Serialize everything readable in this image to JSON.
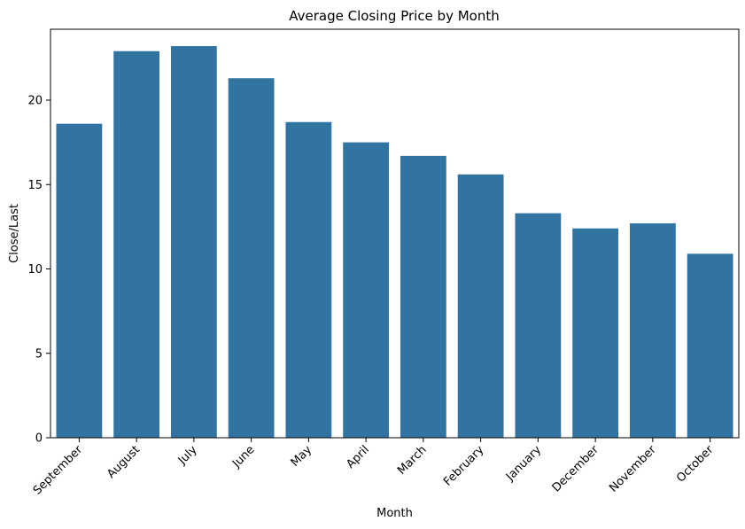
{
  "chart_data": {
    "type": "bar",
    "title": "Average Closing Price by Month",
    "xlabel": "Month",
    "ylabel": "Close/Last",
    "categories": [
      "September",
      "August",
      "July",
      "June",
      "May",
      "April",
      "March",
      "February",
      "January",
      "December",
      "November",
      "October"
    ],
    "values": [
      18.6,
      22.9,
      23.2,
      21.3,
      18.7,
      17.5,
      16.7,
      15.6,
      13.3,
      12.4,
      12.7,
      10.9
    ],
    "ylim": [
      0,
      24.2
    ],
    "yticks": [
      0,
      5,
      10,
      15,
      20
    ],
    "grid": false,
    "bar_color": "#3274a1"
  }
}
